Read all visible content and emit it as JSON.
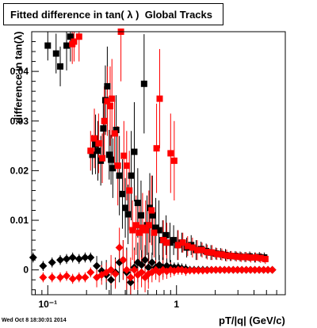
{
  "title": "Fitted difference in tan( λ )  Global Tracks",
  "timestamp": "Wed Oct  8 18:30:01 2014",
  "chart_data": {
    "type": "scatter",
    "title": "Fitted difference in tan( λ )  Global Tracks",
    "xlabel": "pT/|q| (GeV/c)",
    "ylabel": "difference in tan(λ)",
    "x_scale": "log",
    "xlim": [
      0.075,
      7.0
    ],
    "ylim": [
      -0.005,
      0.048
    ],
    "x_ticks": [
      {
        "value": 0.1,
        "label": "10⁻¹"
      },
      {
        "value": 1,
        "label": "1"
      }
    ],
    "y_ticks": [
      {
        "value": 0,
        "label": "0"
      },
      {
        "value": 0.01,
        "label": "0.01"
      },
      {
        "value": 0.02,
        "label": "0.02"
      },
      {
        "value": 0.03,
        "label": "0.03"
      },
      {
        "value": 0.04,
        "label": "0.04"
      }
    ],
    "grid": false,
    "series": [
      {
        "marker": "square",
        "color": "#000000",
        "points": [
          [
            0.1,
            0.0452,
            0.003
          ],
          [
            0.116,
            0.0436,
            0.004
          ],
          [
            0.125,
            0.041,
            0.004
          ],
          [
            0.14,
            0.0452,
            0.005
          ],
          [
            0.15,
            0.047,
            0.005
          ],
          [
            0.222,
            0.0232,
            0.004
          ],
          [
            0.235,
            0.0253,
            0.006
          ],
          [
            0.245,
            0.024,
            0.006
          ],
          [
            0.258,
            0.022,
            0.005
          ],
          [
            0.27,
            0.0285,
            0.006
          ],
          [
            0.28,
            0.0342,
            0.007
          ],
          [
            0.29,
            0.037,
            0.008
          ],
          [
            0.3,
            0.0232,
            0.005
          ],
          [
            0.31,
            0.0222,
            0.005
          ],
          [
            0.32,
            0.0205,
            0.006
          ],
          [
            0.34,
            0.0282,
            0.007
          ],
          [
            0.36,
            0.019,
            0.008
          ],
          [
            0.38,
            0.0153,
            0.007
          ],
          [
            0.4,
            0.0125,
            0.006
          ],
          [
            0.42,
            0.0112,
            0.006
          ],
          [
            0.445,
            0.019,
            0.009
          ],
          [
            0.47,
            0.0238,
            0.01
          ],
          [
            0.5,
            0.0135,
            0.007
          ],
          [
            0.53,
            0.011,
            0.007
          ],
          [
            0.56,
            0.0375,
            0.01
          ],
          [
            0.59,
            0.009,
            0.006
          ],
          [
            0.62,
            0.0125,
            0.007
          ],
          [
            0.65,
            0.011,
            0.008
          ],
          [
            0.69,
            0.0085,
            0.006
          ],
          [
            0.73,
            0.008,
            0.006
          ],
          [
            0.78,
            0.006,
            0.004
          ],
          [
            0.83,
            0.007,
            0.004
          ],
          [
            0.89,
            0.0055,
            0.004
          ],
          [
            0.95,
            0.006,
            0.003
          ],
          [
            1.02,
            0.005,
            0.003
          ],
          [
            1.1,
            0.0055,
            0.002
          ],
          [
            1.2,
            0.0045,
            0.002
          ],
          [
            1.3,
            0.005,
            0.002
          ],
          [
            1.42,
            0.004,
            0.002
          ],
          [
            1.55,
            0.0042,
            0.0015
          ],
          [
            1.7,
            0.0038,
            0.0015
          ],
          [
            1.85,
            0.0035,
            0.0015
          ],
          [
            2.02,
            0.0033,
            0.0012
          ],
          [
            2.2,
            0.0032,
            0.0012
          ],
          [
            2.4,
            0.003,
            0.0012
          ],
          [
            2.62,
            0.0028,
            0.001
          ],
          [
            2.86,
            0.0028,
            0.001
          ],
          [
            3.12,
            0.0027,
            0.001
          ],
          [
            3.4,
            0.0026,
            0.001
          ],
          [
            3.7,
            0.0027,
            0.001
          ],
          [
            4.05,
            0.0025,
            0.001
          ],
          [
            4.4,
            0.0026,
            0.001
          ],
          [
            4.8,
            0.0025,
            0.001
          ]
        ]
      },
      {
        "marker": "square",
        "color": "#ff0000",
        "points": [
          [
            0.155,
            0.0455,
            0.004
          ],
          [
            0.16,
            0.046,
            0.004
          ],
          [
            0.175,
            0.047,
            0.005
          ],
          [
            0.215,
            0.024,
            0.004
          ],
          [
            0.23,
            0.0265,
            0.006
          ],
          [
            0.248,
            0.0255,
            0.006
          ],
          [
            0.265,
            0.0225,
            0.005
          ],
          [
            0.275,
            0.03,
            0.007
          ],
          [
            0.29,
            0.034,
            0.007
          ],
          [
            0.305,
            0.033,
            0.008
          ],
          [
            0.315,
            0.0345,
            0.008
          ],
          [
            0.33,
            0.0275,
            0.007
          ],
          [
            0.35,
            0.021,
            0.008
          ],
          [
            0.37,
            0.048,
            0.01
          ],
          [
            0.39,
            0.023,
            0.007
          ],
          [
            0.41,
            0.021,
            0.007
          ],
          [
            0.43,
            0.016,
            0.008
          ],
          [
            0.455,
            0.008,
            0.006
          ],
          [
            0.485,
            0.009,
            0.006
          ],
          [
            0.515,
            0.0075,
            0.006
          ],
          [
            0.545,
            0.0085,
            0.007
          ],
          [
            0.575,
            0.008,
            0.006
          ],
          [
            0.61,
            0.009,
            0.007
          ],
          [
            0.64,
            0.012,
            0.007
          ],
          [
            0.67,
            0.0075,
            0.005
          ],
          [
            0.7,
            0.0245,
            0.009
          ],
          [
            0.74,
            0.0345,
            0.01
          ],
          [
            0.79,
            0.006,
            0.004
          ],
          [
            0.84,
            0.0055,
            0.004
          ],
          [
            0.9,
            0.0235,
            0.008
          ],
          [
            0.96,
            0.022,
            0.008
          ],
          [
            1.03,
            0.005,
            0.003
          ],
          [
            1.12,
            0.0055,
            0.002
          ],
          [
            1.22,
            0.0048,
            0.002
          ],
          [
            1.33,
            0.0045,
            0.002
          ],
          [
            1.45,
            0.004,
            0.002
          ],
          [
            1.58,
            0.004,
            0.0015
          ],
          [
            1.73,
            0.0036,
            0.0015
          ],
          [
            1.89,
            0.0035,
            0.0015
          ],
          [
            2.06,
            0.0032,
            0.0012
          ],
          [
            2.25,
            0.0031,
            0.0012
          ],
          [
            2.45,
            0.0029,
            0.0012
          ],
          [
            2.67,
            0.0028,
            0.001
          ],
          [
            2.92,
            0.0027,
            0.001
          ],
          [
            3.18,
            0.0026,
            0.001
          ],
          [
            3.47,
            0.0026,
            0.001
          ],
          [
            3.78,
            0.0025,
            0.001
          ],
          [
            4.12,
            0.0025,
            0.001
          ],
          [
            4.5,
            0.0024,
            0.001
          ],
          [
            4.9,
            0.0022,
            0.001
          ]
        ]
      },
      {
        "marker": "diamond",
        "color": "#000000",
        "points": [
          [
            0.077,
            0.0025,
            0.001
          ],
          [
            0.092,
            0.0008,
            0.001
          ],
          [
            0.108,
            0.0015,
            0.001
          ],
          [
            0.125,
            0.002,
            0.001
          ],
          [
            0.14,
            0.0022,
            0.001
          ],
          [
            0.156,
            0.0025,
            0.001
          ],
          [
            0.175,
            0.0022,
            0.001
          ],
          [
            0.195,
            0.0025,
            0.001
          ],
          [
            0.215,
            0.0025,
            0.001
          ],
          [
            0.24,
            0.0008,
            0.002
          ],
          [
            0.262,
            -0.0002,
            0.002
          ],
          [
            0.285,
            -0.001,
            0.003
          ],
          [
            0.31,
            -0.002,
            0.003
          ],
          [
            0.335,
            -0.0005,
            0.003
          ],
          [
            0.36,
            0.0015,
            0.004
          ],
          [
            0.385,
            0.002,
            0.004
          ],
          [
            0.41,
            -0.0005,
            0.005
          ],
          [
            0.44,
            -0.0025,
            0.004
          ],
          [
            0.47,
            0.0005,
            0.004
          ],
          [
            0.5,
            0.0015,
            0.004
          ],
          [
            0.535,
            0.001,
            0.003
          ],
          [
            0.57,
            0.002,
            0.003
          ],
          [
            0.605,
            0.0005,
            0.003
          ],
          [
            0.645,
            0.0015,
            0.002
          ],
          [
            0.69,
            0.0005,
            0.002
          ],
          [
            0.735,
            0.001,
            0.002
          ],
          [
            0.785,
            0.0005,
            0.002
          ],
          [
            0.84,
            0.0008,
            0.0015
          ],
          [
            0.9,
            0.0005,
            0.0015
          ],
          [
            0.96,
            0.0005,
            0.001
          ],
          [
            1.03,
            0.0005,
            0.001
          ],
          [
            1.1,
            0.0003,
            0.001
          ],
          [
            1.18,
            0.0002,
            0.001
          ],
          [
            1.27,
            0.0,
            0.0008
          ],
          [
            1.37,
            0.0,
            0.0008
          ],
          [
            1.48,
            0.0,
            0.0008
          ],
          [
            1.6,
            0.0,
            0.0008
          ],
          [
            1.73,
            0.0,
            0.0006
          ],
          [
            1.87,
            0.0,
            0.0006
          ],
          [
            2.02,
            0.0,
            0.0006
          ],
          [
            2.18,
            0.0,
            0.0005
          ],
          [
            2.36,
            0.0,
            0.0005
          ],
          [
            2.55,
            0.0,
            0.0005
          ],
          [
            2.76,
            0.0,
            0.0005
          ],
          [
            2.98,
            0.0,
            0.0005
          ],
          [
            3.22,
            0.0,
            0.0004
          ],
          [
            3.48,
            0.0,
            0.0004
          ],
          [
            3.76,
            0.0,
            0.0004
          ],
          [
            4.06,
            0.0,
            0.0004
          ],
          [
            4.39,
            0.0,
            0.0004
          ],
          [
            4.75,
            0.0,
            0.0004
          ],
          [
            5.13,
            0.0,
            0.0004
          ],
          [
            5.55,
            0.0,
            0.0004
          ]
        ]
      },
      {
        "marker": "diamond",
        "color": "#ff0000",
        "points": [
          [
            0.092,
            -0.0015,
            0.001
          ],
          [
            0.108,
            -0.0015,
            0.001
          ],
          [
            0.125,
            -0.0015,
            0.001
          ],
          [
            0.14,
            -0.0012,
            0.001
          ],
          [
            0.156,
            -0.0018,
            0.001
          ],
          [
            0.175,
            -0.0015,
            0.001
          ],
          [
            0.195,
            -0.0015,
            0.001
          ],
          [
            0.215,
            -0.0005,
            0.001
          ],
          [
            0.24,
            -0.0015,
            0.002
          ],
          [
            0.262,
            -0.001,
            0.002
          ],
          [
            0.285,
            -0.0005,
            0.002
          ],
          [
            0.31,
            0.0,
            0.003
          ],
          [
            0.335,
            -0.0008,
            0.003
          ],
          [
            0.36,
            0.0045,
            0.004
          ],
          [
            0.385,
            0.002,
            0.004
          ],
          [
            0.41,
            0.0,
            0.004
          ],
          [
            0.44,
            -0.0015,
            0.004
          ],
          [
            0.47,
            0.0,
            0.004
          ],
          [
            0.5,
            -0.001,
            0.003
          ],
          [
            0.535,
            -0.0005,
            0.003
          ],
          [
            0.57,
            -0.0015,
            0.003
          ],
          [
            0.605,
            -0.0008,
            0.003
          ],
          [
            0.645,
            -0.0005,
            0.002
          ],
          [
            0.69,
            0.0,
            0.002
          ],
          [
            0.735,
            -0.0005,
            0.002
          ],
          [
            0.785,
            0.0,
            0.002
          ],
          [
            0.84,
            -0.0003,
            0.0015
          ],
          [
            0.9,
            0.0,
            0.0015
          ],
          [
            0.96,
            -0.0002,
            0.001
          ],
          [
            1.03,
            0.0,
            0.001
          ],
          [
            1.1,
            0.0,
            0.001
          ],
          [
            1.18,
            -0.0002,
            0.001
          ],
          [
            1.27,
            -0.0001,
            0.0008
          ],
          [
            1.37,
            -0.0001,
            0.0008
          ],
          [
            1.48,
            -0.0001,
            0.0008
          ],
          [
            1.6,
            -0.0001,
            0.0008
          ],
          [
            1.73,
            -0.0001,
            0.0006
          ],
          [
            1.87,
            0.0,
            0.0006
          ],
          [
            2.02,
            0.0,
            0.0006
          ],
          [
            2.18,
            0.0,
            0.0005
          ],
          [
            2.36,
            0.0,
            0.0005
          ],
          [
            2.55,
            0.0,
            0.0005
          ],
          [
            2.76,
            0.0,
            0.0005
          ],
          [
            2.98,
            0.0,
            0.0005
          ],
          [
            3.22,
            0.0,
            0.0004
          ],
          [
            3.48,
            0.0,
            0.0004
          ],
          [
            3.76,
            0.0,
            0.0004
          ],
          [
            4.06,
            0.0,
            0.0004
          ],
          [
            4.39,
            0.0,
            0.0004
          ],
          [
            4.75,
            0.0,
            0.0004
          ],
          [
            5.13,
            0.0,
            0.0004
          ],
          [
            5.55,
            0.0,
            0.0004
          ]
        ]
      }
    ]
  }
}
